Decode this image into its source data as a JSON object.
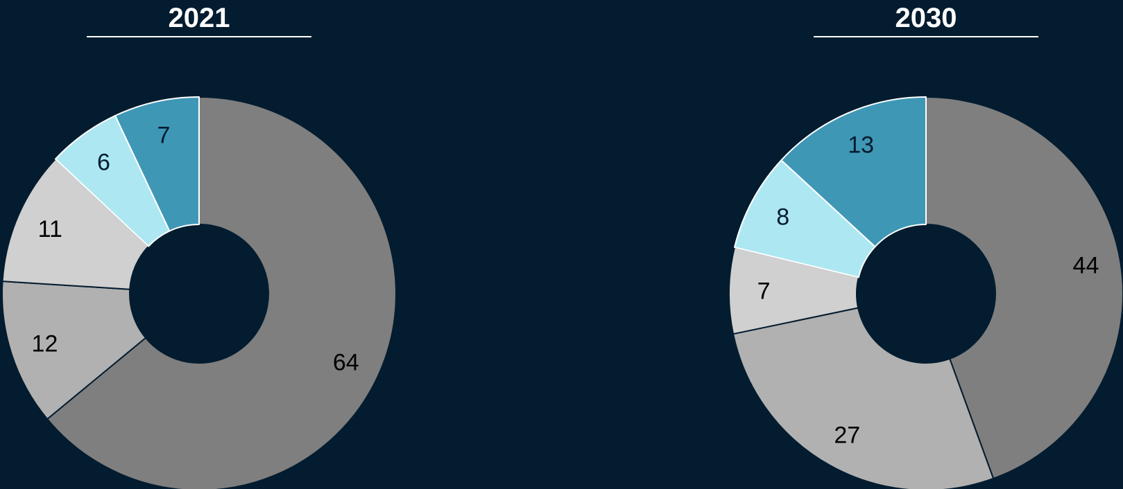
{
  "chart_data": [
    {
      "type": "pie",
      "title": "2021",
      "donut": true,
      "values": [
        64,
        12,
        11,
        6,
        7
      ],
      "labels": [
        "64",
        "12",
        "11",
        "6",
        "7"
      ],
      "colors": [
        "#7f7f7f",
        "#b1b1b1",
        "#d0d0d0",
        "#ade7f2",
        "#3f97b6"
      ],
      "start_angle_deg": 0,
      "direction": "clockwise",
      "legend": "none"
    },
    {
      "type": "pie",
      "title": "2030",
      "donut": true,
      "values": [
        44,
        27,
        7,
        8,
        13
      ],
      "labels": [
        "44",
        "27",
        "7",
        "8",
        "13"
      ],
      "colors": [
        "#7f7f7f",
        "#b1b1b1",
        "#d0d0d0",
        "#ade7f2",
        "#3f97b6"
      ],
      "start_angle_deg": 0,
      "direction": "clockwise",
      "legend": "none"
    }
  ],
  "colors": {
    "background": "#041c2f",
    "title_text": "#ffffff",
    "slice_border_dark": "#041c2f",
    "slice_border_light": "#ffffff",
    "label_dark": "#041c2f",
    "label_black": "#000000"
  }
}
